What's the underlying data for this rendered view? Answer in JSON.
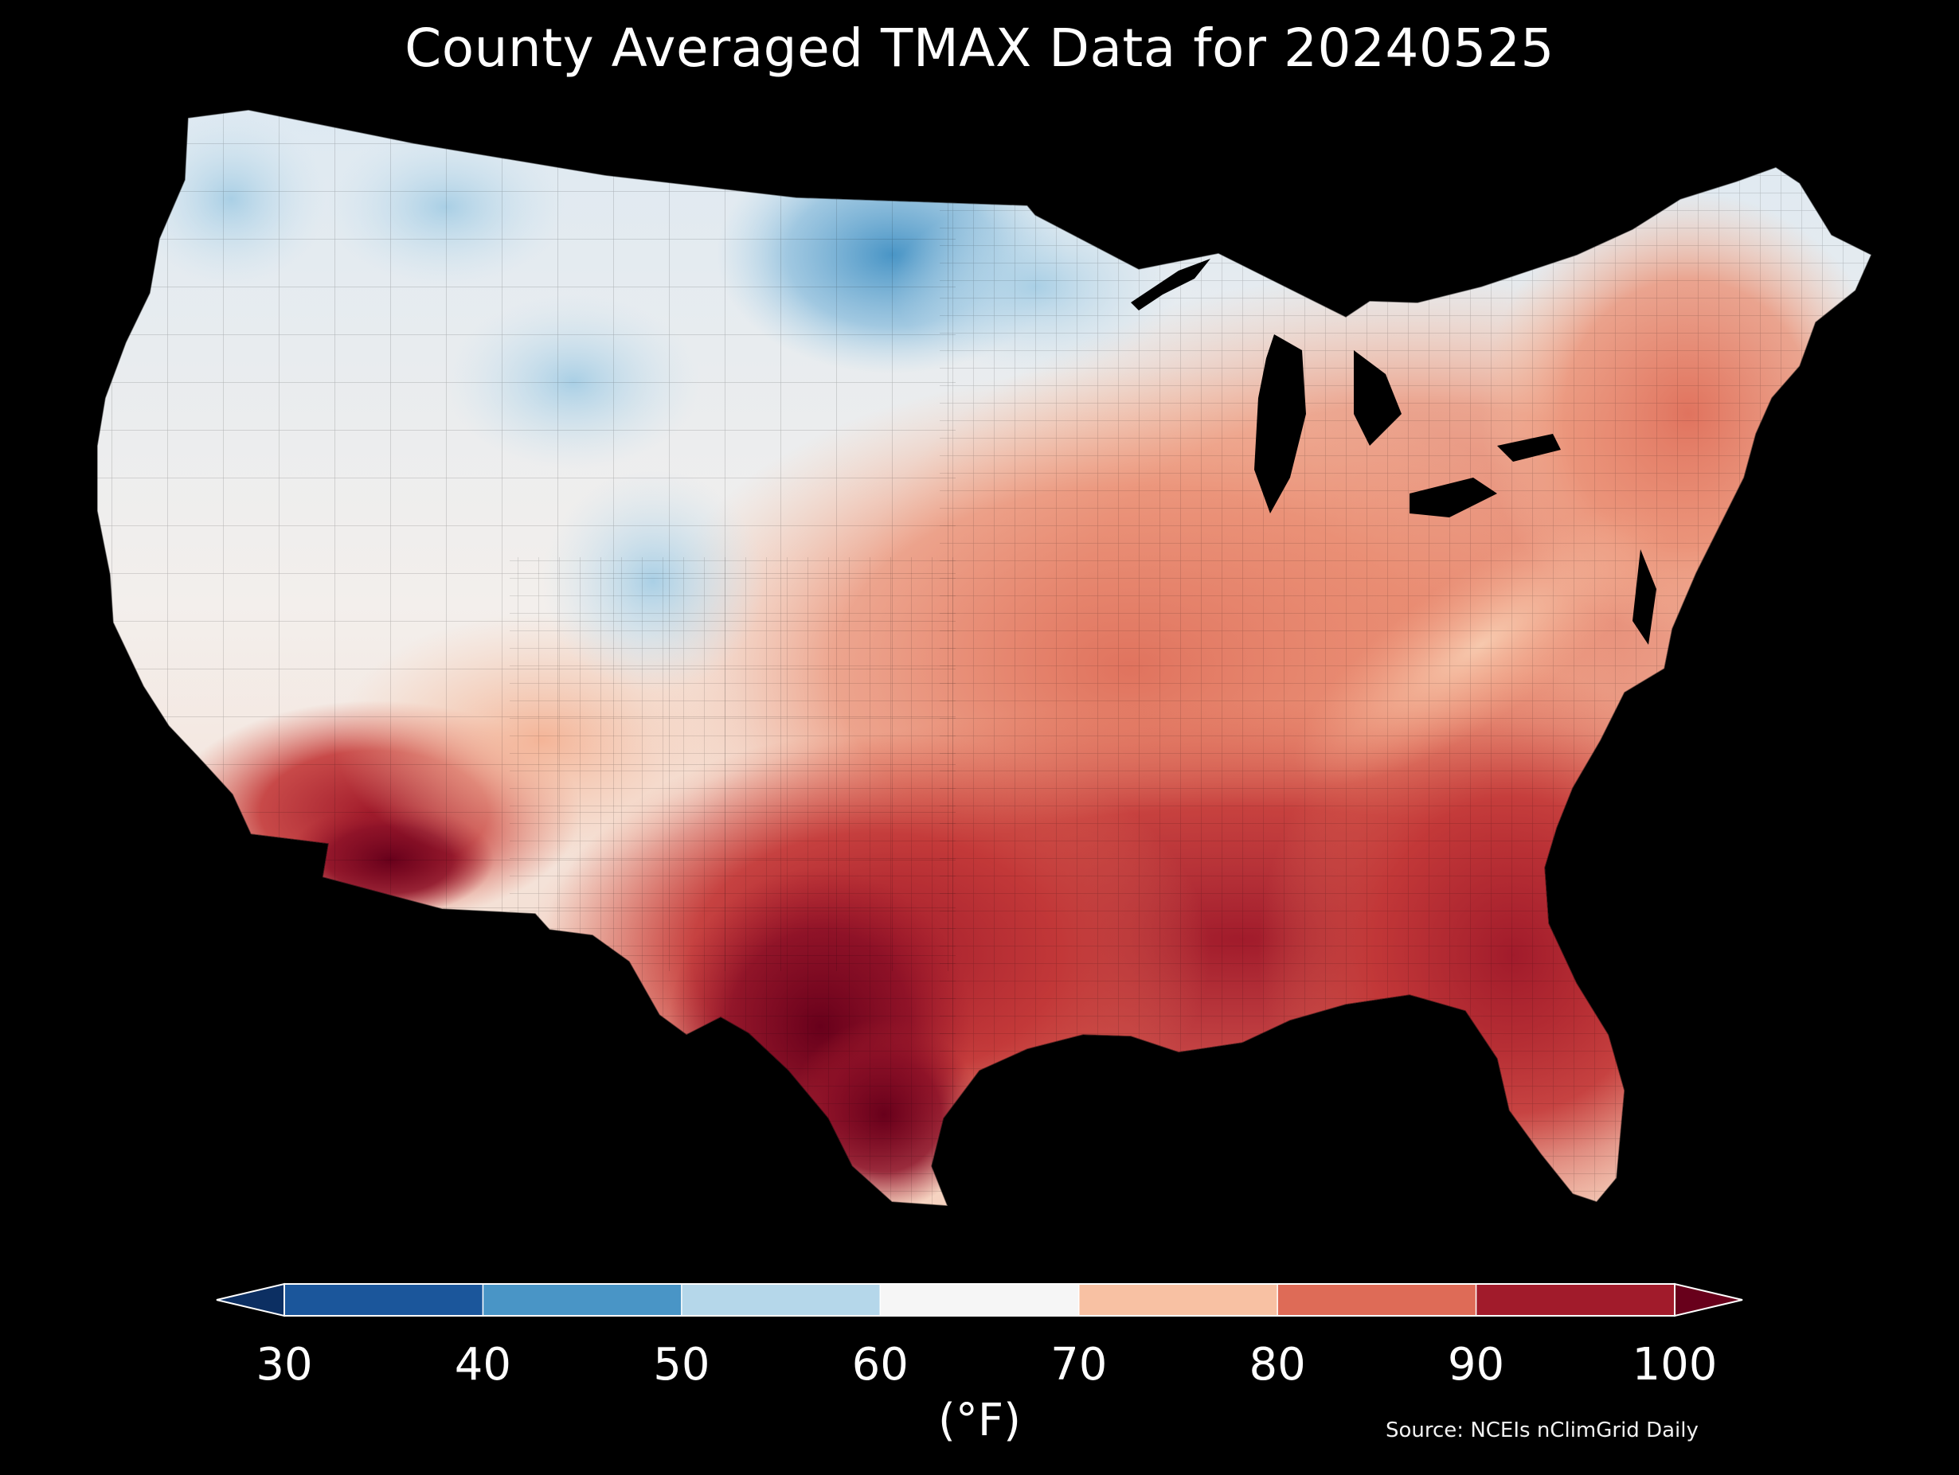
{
  "title": "County Averaged TMAX Data for 20240525",
  "colorbar": {
    "ticks": [
      "30",
      "40",
      "50",
      "60",
      "70",
      "80",
      "90",
      "100"
    ],
    "units": "(°F)",
    "bins": [
      {
        "range": [
          30,
          40
        ],
        "color": "#1b569b"
      },
      {
        "range": [
          40,
          50
        ],
        "color": "#4995c6"
      },
      {
        "range": [
          50,
          60
        ],
        "color": "#b5d7ea"
      },
      {
        "range": [
          60,
          70
        ],
        "color": "#f6f6f6"
      },
      {
        "range": [
          70,
          80
        ],
        "color": "#f8c1a3"
      },
      {
        "range": [
          80,
          90
        ],
        "color": "#de6b57"
      },
      {
        "range": [
          90,
          100
        ],
        "color": "#a11b2b"
      }
    ],
    "under_color": "#0c2f62",
    "over_color": "#68001b"
  },
  "source": "Source: NCEIs nClimGrid Daily"
}
